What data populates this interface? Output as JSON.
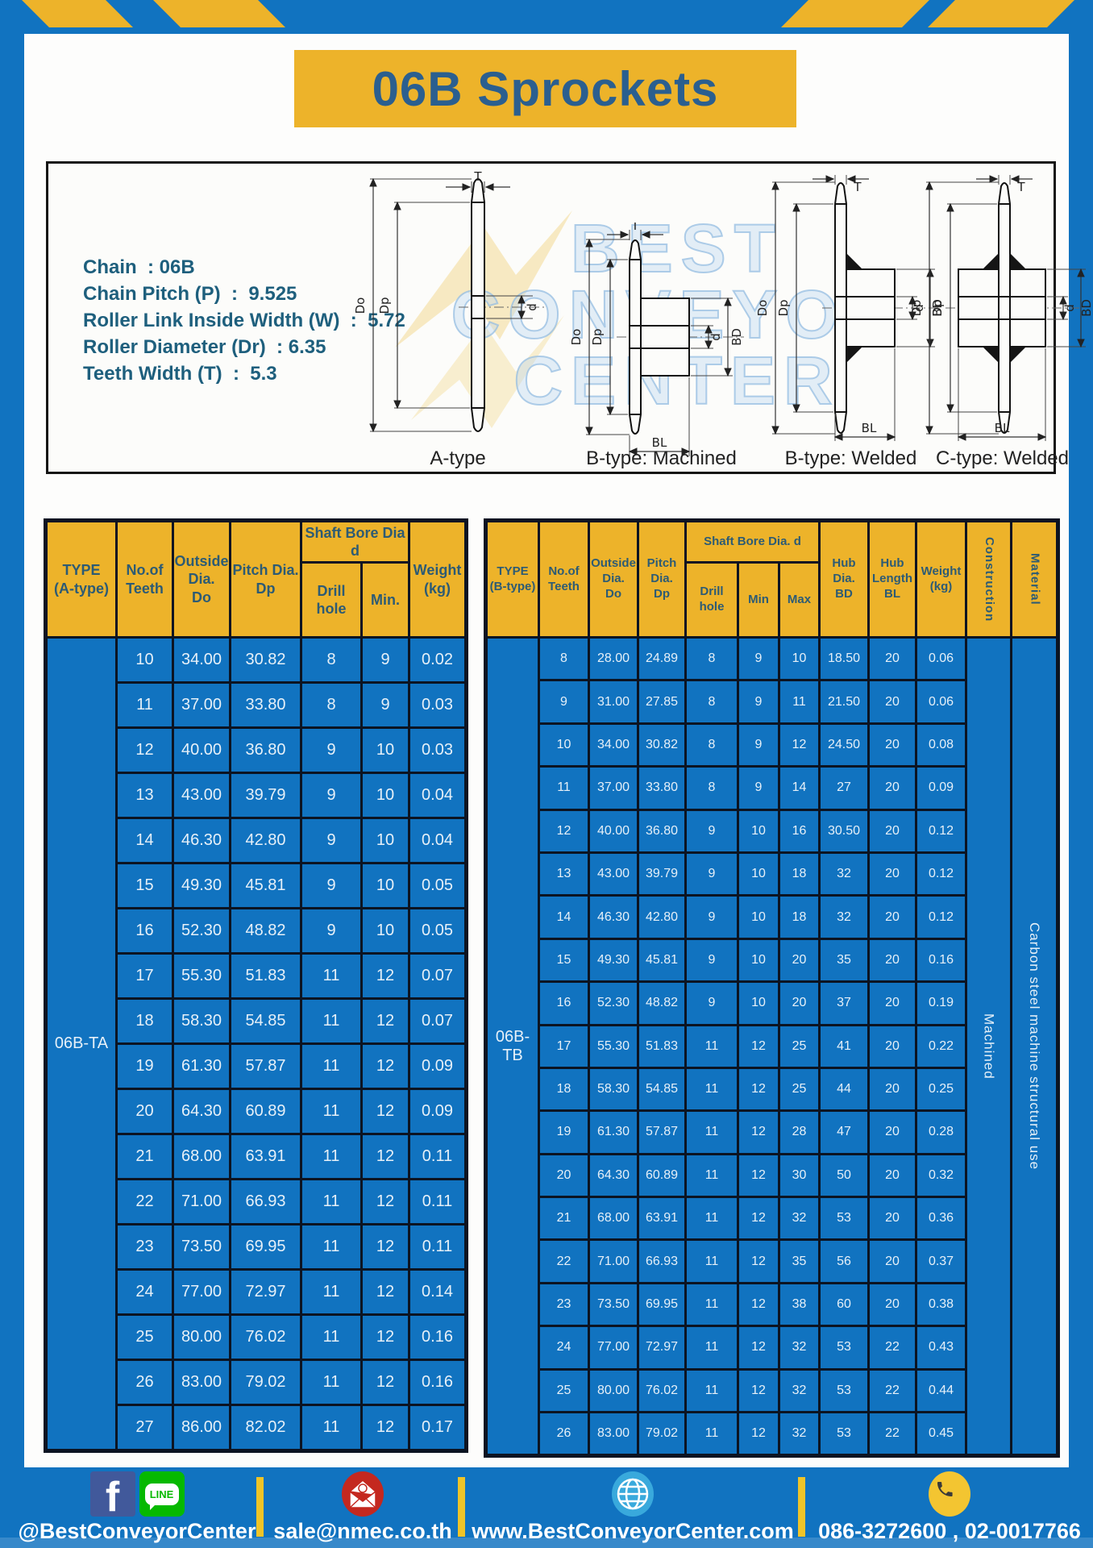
{
  "colors": {
    "blue": "#1173C0",
    "yellow": "#EDB32A",
    "header_text": "#2D5B74",
    "title_text": "#2B5F8F",
    "border": "#0C1422"
  },
  "title": "06B Sprockets",
  "specs": [
    "Chain  : 06B",
    "Chain Pitch (P)  :  9.525",
    "Roller Link Inside Width (W)  :  5.72",
    "Roller Diameter (Dr)  : 6.35",
    "Teeth Width (T)  :  5.3"
  ],
  "watermark": {
    "line1": "BEST",
    "line2": "CONVEYOR",
    "line3": "CENTER"
  },
  "diagram": {
    "captions": [
      "A-type",
      "B-type: Machined",
      "B-type: Welded",
      "C-type: Welded"
    ],
    "dims": {
      "T": "T",
      "Do": "Do",
      "Dp": "Dp",
      "d": "d",
      "BD": "BD",
      "BL": "BL"
    }
  },
  "table_a": {
    "header": {
      "type": "TYPE\n(A-type)",
      "teeth": "No.of\nTeeth",
      "outside": "Outside\nDia.\nDo",
      "pitch": "Pitch Dia.\nDp",
      "bore_group": "Shaft Bore Dia d",
      "drill": "Drill hole",
      "min": "Min.",
      "weight": "Weight\n(kg)"
    },
    "type_value": "06B-TA",
    "rows": [
      [
        "10",
        "34.00",
        "30.82",
        "8",
        "9",
        "0.02"
      ],
      [
        "11",
        "37.00",
        "33.80",
        "8",
        "9",
        "0.03"
      ],
      [
        "12",
        "40.00",
        "36.80",
        "9",
        "10",
        "0.03"
      ],
      [
        "13",
        "43.00",
        "39.79",
        "9",
        "10",
        "0.04"
      ],
      [
        "14",
        "46.30",
        "42.80",
        "9",
        "10",
        "0.04"
      ],
      [
        "15",
        "49.30",
        "45.81",
        "9",
        "10",
        "0.05"
      ],
      [
        "16",
        "52.30",
        "48.82",
        "9",
        "10",
        "0.05"
      ],
      [
        "17",
        "55.30",
        "51.83",
        "11",
        "12",
        "0.07"
      ],
      [
        "18",
        "58.30",
        "54.85",
        "11",
        "12",
        "0.07"
      ],
      [
        "19",
        "61.30",
        "57.87",
        "11",
        "12",
        "0.09"
      ],
      [
        "20",
        "64.30",
        "60.89",
        "11",
        "12",
        "0.09"
      ],
      [
        "21",
        "68.00",
        "63.91",
        "11",
        "12",
        "0.11"
      ],
      [
        "22",
        "71.00",
        "66.93",
        "11",
        "12",
        "0.11"
      ],
      [
        "23",
        "73.50",
        "69.95",
        "11",
        "12",
        "0.11"
      ],
      [
        "24",
        "77.00",
        "72.97",
        "11",
        "12",
        "0.14"
      ],
      [
        "25",
        "80.00",
        "76.02",
        "11",
        "12",
        "0.16"
      ],
      [
        "26",
        "83.00",
        "79.02",
        "11",
        "12",
        "0.16"
      ],
      [
        "27",
        "86.00",
        "82.02",
        "11",
        "12",
        "0.17"
      ]
    ]
  },
  "table_b": {
    "header": {
      "type": "TYPE\n(B-type)",
      "teeth": "No.of\nTeeth",
      "outside": "Outside\nDia.\nDo",
      "pitch": "Pitch\nDia.\nDp",
      "bore_group": "Shaft Bore Dia. d",
      "drill": "Drill hole",
      "min": "Min",
      "max": "Max",
      "hub_dia": "Hub\nDia.\nBD",
      "hub_len": "Hub\nLength\nBL",
      "weight": "Weight\n(kg)",
      "construction": "Construction",
      "material": "Material"
    },
    "type_value": "06B-TB",
    "construction_value": "Machined",
    "material_value": "Carbon  steel  machine  structural  use",
    "rows": [
      [
        "8",
        "28.00",
        "24.89",
        "8",
        "9",
        "10",
        "18.50",
        "20",
        "0.06"
      ],
      [
        "9",
        "31.00",
        "27.85",
        "8",
        "9",
        "11",
        "21.50",
        "20",
        "0.06"
      ],
      [
        "10",
        "34.00",
        "30.82",
        "8",
        "9",
        "12",
        "24.50",
        "20",
        "0.08"
      ],
      [
        "11",
        "37.00",
        "33.80",
        "8",
        "9",
        "14",
        "27",
        "20",
        "0.09"
      ],
      [
        "12",
        "40.00",
        "36.80",
        "9",
        "10",
        "16",
        "30.50",
        "20",
        "0.12"
      ],
      [
        "13",
        "43.00",
        "39.79",
        "9",
        "10",
        "18",
        "32",
        "20",
        "0.12"
      ],
      [
        "14",
        "46.30",
        "42.80",
        "9",
        "10",
        "18",
        "32",
        "20",
        "0.12"
      ],
      [
        "15",
        "49.30",
        "45.81",
        "9",
        "10",
        "20",
        "35",
        "20",
        "0.16"
      ],
      [
        "16",
        "52.30",
        "48.82",
        "9",
        "10",
        "20",
        "37",
        "20",
        "0.19"
      ],
      [
        "17",
        "55.30",
        "51.83",
        "11",
        "12",
        "25",
        "41",
        "20",
        "0.22"
      ],
      [
        "18",
        "58.30",
        "54.85",
        "11",
        "12",
        "25",
        "44",
        "20",
        "0.25"
      ],
      [
        "19",
        "61.30",
        "57.87",
        "11",
        "12",
        "28",
        "47",
        "20",
        "0.28"
      ],
      [
        "20",
        "64.30",
        "60.89",
        "11",
        "12",
        "30",
        "50",
        "20",
        "0.32"
      ],
      [
        "21",
        "68.00",
        "63.91",
        "11",
        "12",
        "32",
        "53",
        "20",
        "0.36"
      ],
      [
        "22",
        "71.00",
        "66.93",
        "11",
        "12",
        "35",
        "56",
        "20",
        "0.37"
      ],
      [
        "23",
        "73.50",
        "69.95",
        "11",
        "12",
        "38",
        "60",
        "20",
        "0.38"
      ],
      [
        "24",
        "77.00",
        "72.97",
        "11",
        "12",
        "32",
        "53",
        "22",
        "0.43"
      ],
      [
        "25",
        "80.00",
        "76.02",
        "11",
        "12",
        "32",
        "53",
        "22",
        "0.44"
      ],
      [
        "26",
        "83.00",
        "79.02",
        "11",
        "12",
        "32",
        "53",
        "22",
        "0.45"
      ]
    ]
  },
  "footer": {
    "social": "@BestConveyorCenter",
    "email": "sale@nmec.co.th",
    "website": "www.BestConveyorCenter.com",
    "phone": "086-3272600 , 02-0017766",
    "icons": {
      "facebook": "f",
      "line": "LINE"
    }
  }
}
